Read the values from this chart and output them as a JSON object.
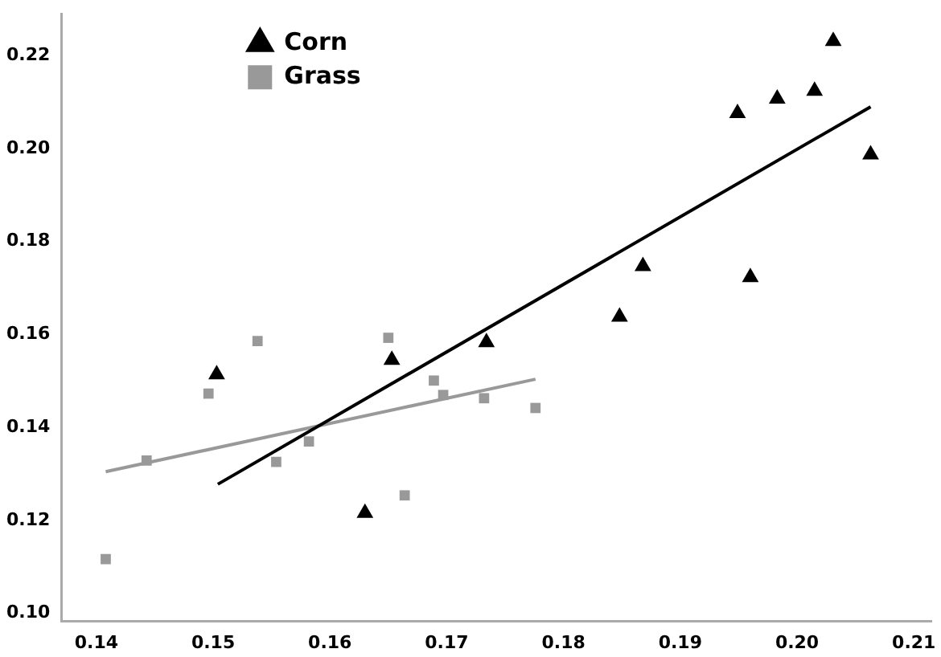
{
  "chart_data": {
    "type": "scatter",
    "legend": "top left",
    "grid": false,
    "xlim": [
      0.137,
      0.2115
    ],
    "xticks": [
      0.14,
      0.15,
      0.16,
      0.17,
      0.18,
      0.19,
      {
        "value": 0.2,
        "label": "0.20"
      },
      0.21
    ],
    "ylim": [
      0.0983,
      0.229
    ],
    "yticks": [
      {
        "value": 0.1,
        "label": "0.10"
      },
      0.12,
      0.14,
      0.16,
      0.18,
      {
        "value": 0.2,
        "label": "0.20"
      },
      0.22
    ],
    "series": [
      {
        "name": "Corn",
        "color": "#000000",
        "marker": "triangle",
        "x": [
          0.1503,
          0.1653,
          0.163,
          0.1734,
          0.1848,
          0.1868,
          0.1949,
          0.196,
          0.1983,
          0.2015,
          0.2031,
          0.2063
        ],
        "values": [
          0.1514,
          0.1545,
          0.1216,
          0.1583,
          0.1638,
          0.1747,
          0.2076,
          0.1723,
          0.2107,
          0.2124,
          0.2231,
          0.1987
        ]
      },
      {
        "name": "Grass",
        "color": "#999999",
        "marker": "square",
        "x": [
          0.1408,
          0.1443,
          0.1496,
          0.1538,
          0.1554,
          0.1582,
          0.165,
          0.1664,
          0.1689,
          0.1697,
          0.1732,
          0.1776
        ],
        "values": [
          0.1117,
          0.1329,
          0.1473,
          0.1586,
          0.1326,
          0.137,
          0.1593,
          0.1254,
          0.1501,
          0.147,
          0.1463,
          0.1442
        ]
      },
      {
        "type": "line",
        "color": "#000000",
        "marker": "none",
        "x": [
          0.1504,
          0.2063
        ],
        "values": [
          0.1278,
          0.209
        ]
      },
      {
        "type": "line",
        "color": "#999999",
        "marker": "none",
        "x": [
          0.1408,
          0.1776
        ],
        "values": [
          0.1305,
          0.1504
        ]
      }
    ]
  }
}
